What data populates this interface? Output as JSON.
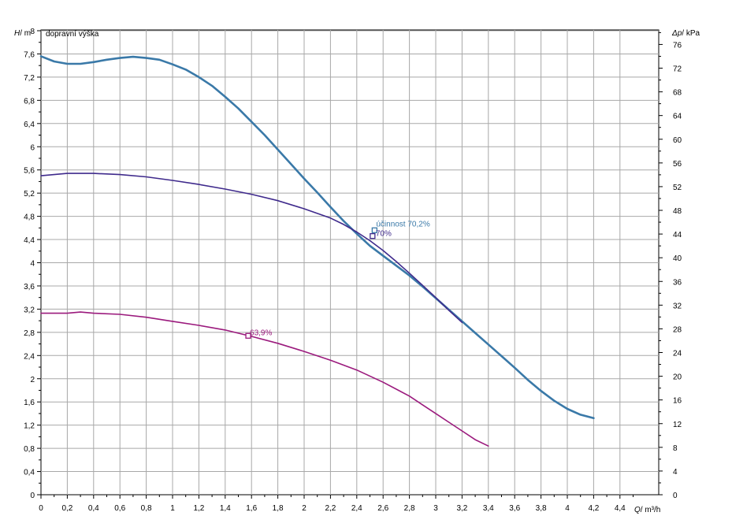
{
  "chart_data": {
    "type": "line",
    "inner_title": "dopravní výška",
    "y_axis_label": {
      "var": "H",
      "unit": "m"
    },
    "y2_axis_label": {
      "var": "Δp",
      "unit": "kPa"
    },
    "x_axis_label": {
      "var": "Q",
      "unit": "m³/h"
    },
    "xlim": [
      0,
      4.6
    ],
    "ylim": [
      0,
      8
    ],
    "y2lim": [
      0,
      78.45
    ],
    "grid": true,
    "x_ticks": [
      "0",
      "0,2",
      "0,4",
      "0,6",
      "0,8",
      "1",
      "1,2",
      "1,4",
      "1,6",
      "1,8",
      "2",
      "2,2",
      "2,4",
      "2,6",
      "2,8",
      "3",
      "3,2",
      "3,4",
      "3,6",
      "3,8",
      "4",
      "4,2",
      "4,4"
    ],
    "y_ticks": [
      "0",
      "0,4",
      "0,8",
      "1,2",
      "1,6",
      "2",
      "2,4",
      "2,8",
      "3,2",
      "3,6",
      "4",
      "4,4",
      "4,8",
      "5,2",
      "5,6",
      "6",
      "6,4",
      "6,8",
      "7,2",
      "7,6",
      "8"
    ],
    "y2_ticks": [
      "0",
      "4",
      "8",
      "12",
      "16",
      "20",
      "24",
      "28",
      "32",
      "36",
      "40",
      "44",
      "48",
      "52",
      "56",
      "60",
      "64",
      "68",
      "72",
      "76"
    ],
    "series": [
      {
        "color": "#3a79a8",
        "width": 2.6,
        "points": [
          [
            0,
            7.56
          ],
          [
            0.1,
            7.47
          ],
          [
            0.2,
            7.43
          ],
          [
            0.3,
            7.43
          ],
          [
            0.4,
            7.46
          ],
          [
            0.5,
            7.5
          ],
          [
            0.6,
            7.53
          ],
          [
            0.7,
            7.55
          ],
          [
            0.8,
            7.53
          ],
          [
            0.9,
            7.5
          ],
          [
            1.0,
            7.42
          ],
          [
            1.1,
            7.33
          ],
          [
            1.2,
            7.2
          ],
          [
            1.3,
            7.05
          ],
          [
            1.4,
            6.86
          ],
          [
            1.5,
            6.66
          ],
          [
            1.6,
            6.43
          ],
          [
            1.7,
            6.2
          ],
          [
            1.8,
            5.95
          ],
          [
            1.9,
            5.7
          ],
          [
            2.0,
            5.45
          ],
          [
            2.1,
            5.21
          ],
          [
            2.2,
            4.96
          ],
          [
            2.3,
            4.72
          ],
          [
            2.4,
            4.5
          ],
          [
            2.5,
            4.29
          ],
          [
            2.6,
            4.12
          ],
          [
            2.7,
            3.95
          ],
          [
            2.8,
            3.78
          ],
          [
            2.9,
            3.59
          ],
          [
            3.0,
            3.39
          ],
          [
            3.1,
            3.19
          ],
          [
            3.2,
            2.99
          ],
          [
            3.3,
            2.79
          ],
          [
            3.4,
            2.59
          ],
          [
            3.5,
            2.39
          ],
          [
            3.6,
            2.19
          ],
          [
            3.7,
            1.98
          ],
          [
            3.8,
            1.79
          ],
          [
            3.9,
            1.62
          ],
          [
            4.0,
            1.48
          ],
          [
            4.1,
            1.38
          ],
          [
            4.2,
            1.32
          ]
        ]
      },
      {
        "color": "#3f2a8c",
        "width": 1.6,
        "points": [
          [
            0,
            5.5
          ],
          [
            0.2,
            5.54
          ],
          [
            0.4,
            5.54
          ],
          [
            0.6,
            5.52
          ],
          [
            0.8,
            5.48
          ],
          [
            1.0,
            5.42
          ],
          [
            1.2,
            5.35
          ],
          [
            1.4,
            5.27
          ],
          [
            1.6,
            5.18
          ],
          [
            1.8,
            5.07
          ],
          [
            2.0,
            4.93
          ],
          [
            2.2,
            4.77
          ],
          [
            2.3,
            4.66
          ],
          [
            2.4,
            4.53
          ],
          [
            2.5,
            4.38
          ],
          [
            2.6,
            4.21
          ],
          [
            2.7,
            4.02
          ],
          [
            2.8,
            3.82
          ],
          [
            2.9,
            3.61
          ],
          [
            3.0,
            3.4
          ],
          [
            3.1,
            3.18
          ],
          [
            3.2,
            2.97
          ]
        ]
      },
      {
        "color": "#9b1a7d",
        "width": 1.6,
        "points": [
          [
            0,
            3.13
          ],
          [
            0.2,
            3.13
          ],
          [
            0.3,
            3.15
          ],
          [
            0.4,
            3.13
          ],
          [
            0.6,
            3.11
          ],
          [
            0.8,
            3.06
          ],
          [
            1.0,
            2.99
          ],
          [
            1.2,
            2.92
          ],
          [
            1.4,
            2.84
          ],
          [
            1.6,
            2.73
          ],
          [
            1.8,
            2.61
          ],
          [
            2.0,
            2.47
          ],
          [
            2.2,
            2.32
          ],
          [
            2.4,
            2.15
          ],
          [
            2.6,
            1.94
          ],
          [
            2.8,
            1.7
          ],
          [
            2.9,
            1.55
          ],
          [
            3.0,
            1.4
          ],
          [
            3.1,
            1.25
          ],
          [
            3.2,
            1.1
          ],
          [
            3.3,
            0.95
          ],
          [
            3.4,
            0.84
          ]
        ]
      }
    ],
    "markers": [
      {
        "x": 2.535,
        "y": 4.56,
        "color": "#3a79a8",
        "label": "účinnost 70,2%",
        "label_dx": 2,
        "label_dy": -9
      },
      {
        "x": 2.52,
        "y": 4.46,
        "color": "#3f2a8c",
        "label": "70%",
        "label_dx": 4,
        "label_dy": -4
      },
      {
        "x": 1.575,
        "y": 2.74,
        "color": "#9b1a7d",
        "label": "63,9%",
        "label_dx": 2,
        "label_dy": -5
      }
    ]
  }
}
